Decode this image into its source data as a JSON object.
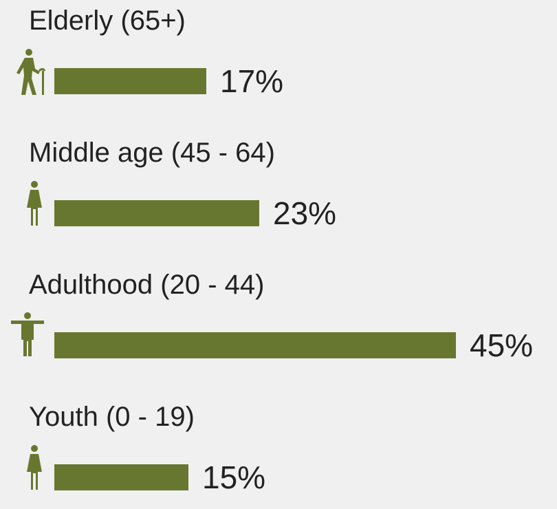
{
  "chart_data": {
    "type": "bar",
    "orientation": "horizontal",
    "categories": [
      "Elderly (65+)",
      "Middle age (45 - 64)",
      "Adulthood (20 - 44)",
      "Youth (0 - 19)"
    ],
    "values": [
      17,
      23,
      45,
      15
    ],
    "value_labels": [
      "17%",
      "23%",
      "45%",
      "15%"
    ],
    "icons": [
      "elderly-person-icon",
      "middle-age-person-icon",
      "adult-person-icon",
      "youth-person-icon"
    ],
    "bar_color": "#68772f",
    "xlim": [
      0,
      45
    ],
    "grid": false,
    "legend": "none"
  }
}
